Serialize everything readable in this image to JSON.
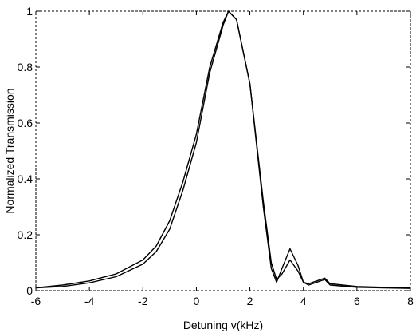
{
  "chart_data": {
    "type": "line",
    "title": "",
    "xlabel": "Detuning  v(kHz)",
    "ylabel": "Normalized Transmission",
    "xlim": [
      -6,
      8
    ],
    "ylim": [
      0,
      1
    ],
    "xticks": [
      -6,
      -4,
      -2,
      0,
      2,
      4,
      6,
      8
    ],
    "yticks": [
      0,
      0.2,
      0.4,
      0.6,
      0.8,
      1
    ],
    "xtick_labels": [
      "-6",
      "-4",
      "-2",
      "0",
      "2",
      "4",
      "6",
      "8"
    ],
    "ytick_labels": [
      "0",
      "0.2",
      "0.4",
      "0.6",
      "0.8",
      "1"
    ],
    "grid": false,
    "box": "dashed",
    "line_color": "#000000",
    "series": [
      {
        "x": [
          -6,
          -5,
          -4,
          -3,
          -2,
          -1.5,
          -1,
          -0.5,
          0,
          0.5,
          1,
          1.2,
          1.5,
          2,
          2.5,
          2.8,
          3,
          3.2,
          3.5,
          3.8,
          4,
          4.2,
          4.5,
          4.8,
          5,
          6,
          7,
          8
        ],
        "y": [
          0.01,
          0.02,
          0.035,
          0.06,
          0.11,
          0.16,
          0.25,
          0.39,
          0.56,
          0.8,
          0.96,
          1.0,
          0.97,
          0.74,
          0.3,
          0.08,
          0.03,
          0.08,
          0.15,
          0.09,
          0.03,
          0.025,
          0.035,
          0.045,
          0.025,
          0.015,
          0.012,
          0.01
        ]
      },
      {
        "x": [
          -6,
          -5,
          -4,
          -3,
          -2,
          -1.5,
          -1,
          -0.5,
          0,
          0.5,
          1,
          1.2,
          1.5,
          2,
          2.5,
          2.8,
          3,
          3.2,
          3.5,
          3.8,
          4,
          4.2,
          4.5,
          4.8,
          5,
          6,
          7,
          8
        ],
        "y": [
          0.01,
          0.015,
          0.028,
          0.05,
          0.095,
          0.14,
          0.22,
          0.36,
          0.53,
          0.78,
          0.95,
          1.0,
          0.97,
          0.74,
          0.32,
          0.1,
          0.04,
          0.06,
          0.11,
          0.07,
          0.03,
          0.02,
          0.03,
          0.04,
          0.02,
          0.012,
          0.01,
          0.008
        ]
      }
    ]
  }
}
